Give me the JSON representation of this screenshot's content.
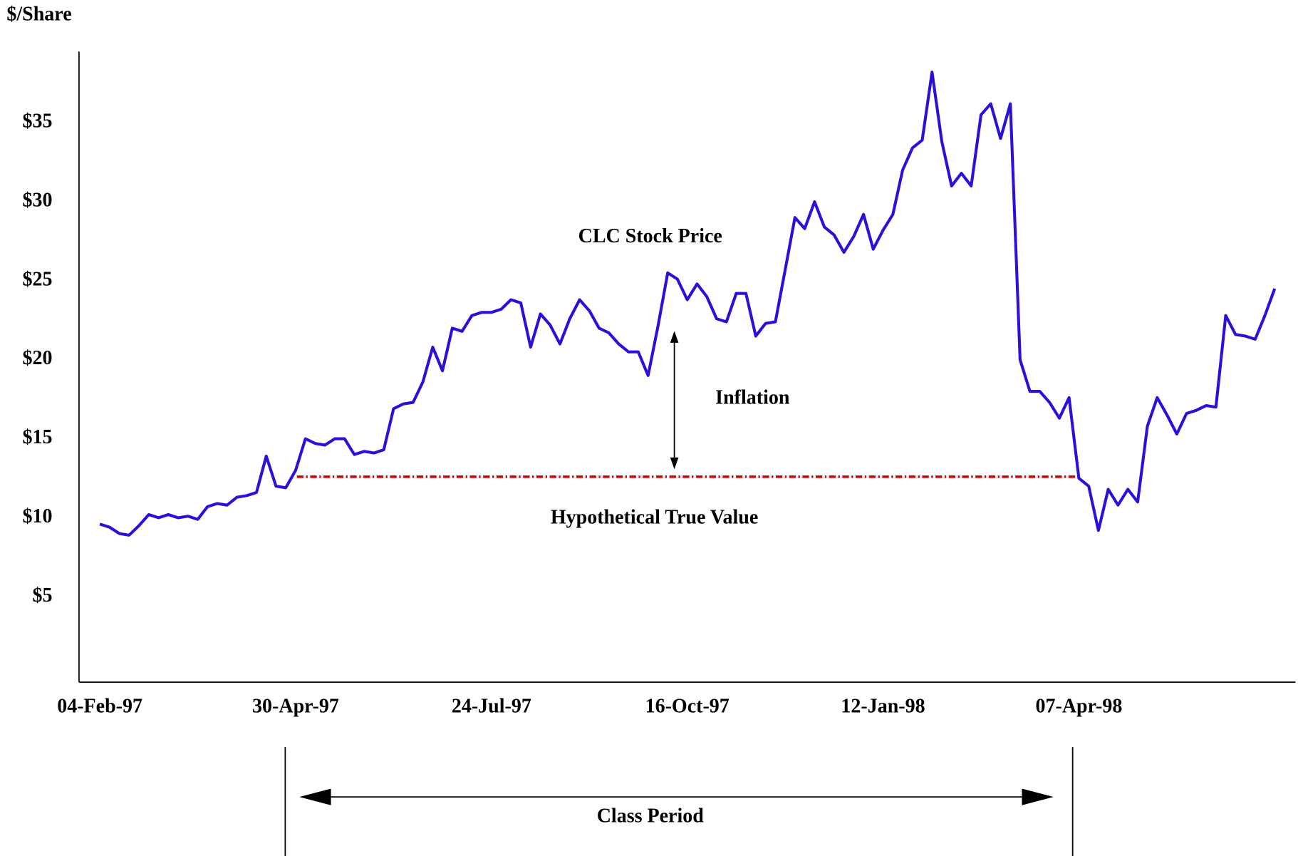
{
  "chart_data": {
    "type": "line",
    "ylabel": "$/Share",
    "categories": [
      "04-Feb-97",
      null,
      null,
      null,
      null,
      null,
      null,
      null,
      null,
      null,
      null,
      null,
      null,
      null,
      null,
      null,
      null,
      null,
      null,
      null,
      "30-Apr-97",
      null,
      null,
      null,
      null,
      null,
      null,
      null,
      null,
      null,
      null,
      null,
      null,
      null,
      null,
      null,
      null,
      null,
      null,
      null,
      "24-Jul-97",
      null,
      null,
      null,
      null,
      null,
      null,
      null,
      null,
      null,
      null,
      null,
      null,
      null,
      null,
      null,
      null,
      null,
      null,
      null,
      "16-Oct-97",
      null,
      null,
      null,
      null,
      null,
      null,
      null,
      null,
      null,
      null,
      null,
      null,
      null,
      null,
      null,
      null,
      null,
      null,
      null,
      "12-Jan-98",
      null,
      null,
      null,
      null,
      null,
      null,
      null,
      null,
      null,
      null,
      null,
      null,
      null,
      null,
      null,
      null,
      null,
      null,
      null,
      "07-Apr-98",
      null,
      null,
      null,
      null,
      null,
      null,
      null,
      null,
      null,
      null,
      null,
      null,
      null,
      null,
      null,
      null,
      null,
      null,
      null,
      null
    ],
    "series": [
      {
        "name": "CLC Stock Price",
        "color": "#2a10d8",
        "values": [
          9.6,
          9.4,
          9.0,
          8.9,
          9.5,
          10.2,
          10.0,
          10.2,
          10.0,
          10.1,
          9.9,
          10.7,
          10.9,
          10.8,
          11.3,
          11.4,
          11.6,
          13.9,
          12.0,
          11.9,
          13.0,
          15.0,
          14.7,
          14.6,
          15.0,
          15.0,
          14.0,
          14.2,
          14.1,
          14.3,
          16.9,
          17.2,
          17.3,
          18.6,
          20.8,
          19.3,
          22.0,
          21.8,
          22.8,
          23.0,
          23.0,
          23.2,
          23.8,
          23.6,
          20.8,
          22.9,
          22.2,
          21.0,
          22.6,
          23.8,
          23.1,
          22.0,
          21.7,
          21.0,
          20.5,
          20.5,
          19.0,
          22.1,
          25.5,
          25.1,
          23.8,
          24.8,
          24.0,
          22.6,
          22.4,
          24.2,
          24.2,
          21.5,
          22.3,
          22.4,
          25.7,
          29.0,
          28.3,
          30.0,
          28.4,
          27.9,
          26.8,
          27.8,
          29.2,
          27.0,
          28.2,
          29.2,
          32.0,
          33.4,
          33.9,
          38.2,
          33.8,
          31.0,
          31.8,
          31.0,
          35.5,
          36.2,
          34.0,
          36.2,
          20.0,
          18.0,
          18.0,
          17.3,
          16.3,
          17.6,
          12.5,
          12.0,
          9.2,
          11.8,
          10.8,
          11.8,
          11.0,
          15.8,
          17.6,
          16.5,
          15.3,
          16.6,
          16.8,
          17.1,
          17.0,
          22.8,
          21.6,
          21.5,
          21.3,
          22.8,
          24.5
        ]
      }
    ],
    "ylim": [
      -0.4,
      39.5
    ],
    "yticks": [
      {
        "value": 5,
        "label": "$5"
      },
      {
        "value": 10,
        "label": "$10"
      },
      {
        "value": 15,
        "label": "$15"
      },
      {
        "value": 20,
        "label": "$20"
      },
      {
        "value": 25,
        "label": "$25"
      },
      {
        "value": 30,
        "label": "$30"
      },
      {
        "value": 35,
        "label": "$35"
      }
    ],
    "grid": false,
    "true_value": 12.6,
    "true_value_color": "#d40000",
    "annotations": {
      "inflation": "Inflation",
      "true_value_label": "Hypothetical True Value",
      "class_period": "Class Period"
    }
  }
}
